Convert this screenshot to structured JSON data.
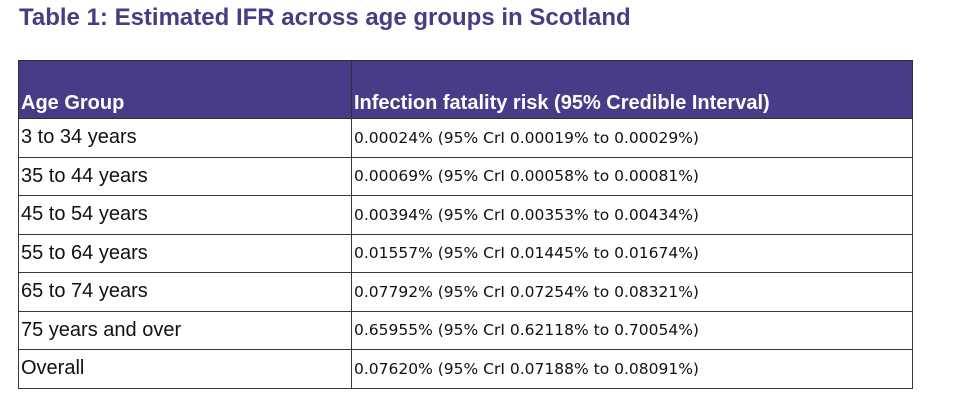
{
  "title": "Table 1: Estimated IFR across age groups in Scotland",
  "table": {
    "headers": [
      "Age Group",
      "Infection fatality risk (95% Credible Interval)"
    ],
    "rows": [
      {
        "age_group": "3 to 34 years",
        "ifr": "0.00024% (95% CrI 0.00019% to 0.00029%)"
      },
      {
        "age_group": "35 to 44 years",
        "ifr": "0.00069% (95% CrI 0.00058% to 0.00081%)"
      },
      {
        "age_group": "45 to 54 years",
        "ifr": "0.00394% (95% CrI 0.00353% to 0.00434%)"
      },
      {
        "age_group": "55 to 64 years",
        "ifr": "0.01557% (95% CrI 0.01445% to 0.01674%)"
      },
      {
        "age_group": "65 to 74 years",
        "ifr": "0.07792% (95% CrI 0.07254% to 0.08321%)"
      },
      {
        "age_group": "75 years and over",
        "ifr": "0.65955% (95% CrI 0.62118% to 0.70054%)"
      },
      {
        "age_group": "Overall",
        "ifr": "0.07620% (95% CrI 0.07188% to 0.08091%)"
      }
    ]
  },
  "colors": {
    "title": "#4b3a84",
    "header_background": "#4a3b88",
    "header_text": "#ffffff",
    "border": "#3a3a3a"
  }
}
